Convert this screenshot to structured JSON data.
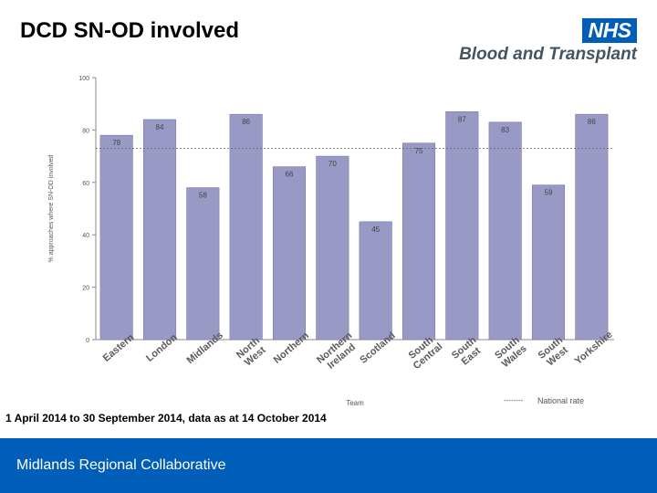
{
  "header": {
    "title": "DCD SN-OD involved",
    "logo_badge": "NHS",
    "logo_text": "Blood and Transplant"
  },
  "note": "1 April 2014 to 30 September 2014, data as at 14 October 2014",
  "footer": {
    "text": "Midlands Regional Collaborative"
  },
  "colors": {
    "bar": "#9999c6",
    "bar_edge": "#7a7aa8",
    "accent": "#005eb8",
    "logo_text": "#425563"
  },
  "chart_data": {
    "type": "bar",
    "title": "",
    "categories": [
      "Eastern",
      "London",
      "Midlands",
      "North West",
      "Northern",
      "Northern Ireland",
      "Scotland",
      "South Central",
      "South East",
      "South Wales",
      "South West",
      "Yorkshire"
    ],
    "category_lines": [
      [
        "Eastern"
      ],
      [
        "London"
      ],
      [
        "Midlands"
      ],
      [
        "North",
        "West"
      ],
      [
        "Northern"
      ],
      [
        "Northern",
        "Ireland"
      ],
      [
        "Scotland"
      ],
      [
        "South",
        "Central"
      ],
      [
        "South",
        "East"
      ],
      [
        "South",
        "Wales"
      ],
      [
        "South",
        "West"
      ],
      [
        "Yorkshire"
      ]
    ],
    "values": [
      78,
      84,
      58,
      86,
      66,
      70,
      45,
      75,
      87,
      83,
      59,
      86
    ],
    "xlabel": "Team",
    "ylabel": "% approaches where SN-OD involved",
    "ylim": [
      0,
      100
    ],
    "yticks": [
      0,
      20,
      40,
      60,
      80,
      100
    ],
    "national_rate": 73,
    "national_rate_label": "National rate",
    "legend_dashes": "--------",
    "grid": false
  }
}
